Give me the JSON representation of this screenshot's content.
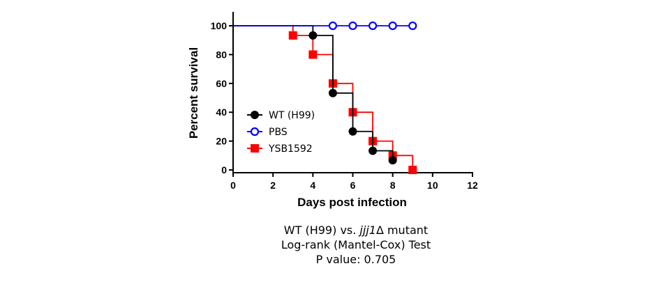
{
  "chart_data": {
    "type": "line",
    "step": true,
    "xlabel": "Days post infection",
    "ylabel": "Percent survival",
    "xlim": [
      0,
      12
    ],
    "ylim": [
      0,
      100
    ],
    "xticks": [
      "0",
      "2",
      "4",
      "6",
      "8",
      "10",
      "12"
    ],
    "yticks": [
      "0",
      "20",
      "40",
      "60",
      "80",
      "100"
    ],
    "grid": false,
    "legend": "center-left",
    "series": [
      {
        "name": "WT (H99)",
        "color": "#000000",
        "marker": "filled-circle",
        "x": [
          0,
          4,
          5,
          6,
          7,
          8
        ],
        "y": [
          100,
          93.3,
          53.3,
          26.7,
          13.3,
          6.7
        ]
      },
      {
        "name": "PBS",
        "color": "#0000ff",
        "marker": "open-circle",
        "x": [
          0,
          5,
          6,
          7,
          8,
          9
        ],
        "y": [
          100,
          100,
          100,
          100,
          100,
          100
        ]
      },
      {
        "name": "YSB1592",
        "color": "#ff0000",
        "marker": "filled-square",
        "x": [
          0,
          3,
          4,
          5,
          6,
          7,
          8,
          9
        ],
        "y": [
          100,
          93.3,
          80,
          60,
          40,
          20,
          10,
          0
        ]
      }
    ]
  },
  "caption": {
    "line1_prefix": "WT (H99) vs. ",
    "line1_italic": "jjj1",
    "line1_suffix": "Δ mutant",
    "line2": "Log-rank (Mantel-Cox) Test",
    "line3": "P value: 0.705"
  }
}
